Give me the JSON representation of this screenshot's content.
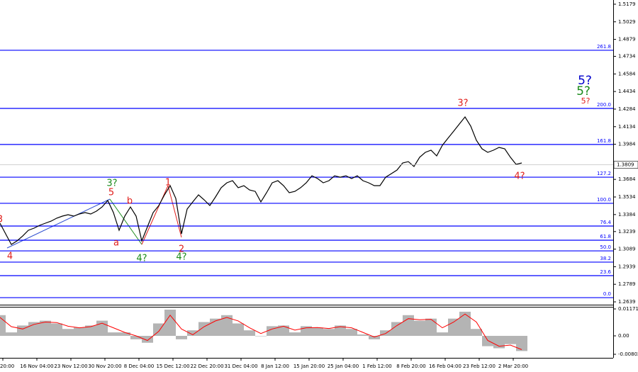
{
  "chart_data": [
    {
      "type": "line",
      "x_labels": [
        "20:00",
        "16 Nov 04:00",
        "23 Nov 12:00",
        "30 Nov 20:00",
        "8 Dec 04:00",
        "15 Dec 12:00",
        "22 Dec 20:00",
        "31 Dec 04:00",
        "8 Jan 12:00",
        "15 Jan 20:00",
        "25 Jan 04:00",
        "1 Feb 12:00",
        "8 Feb 20:00",
        "16 Feb 04:00",
        "23 Feb 12:00",
        "2 Mar 20:00"
      ],
      "series": [
        {
          "color": "#000000",
          "values": [
            1.331,
            1.3219,
            1.3129,
            1.3159,
            1.3201,
            1.325,
            1.3268,
            1.3292,
            1.331,
            1.3328,
            1.3353,
            1.3371,
            1.3383,
            1.3371,
            1.3389,
            1.3401,
            1.3389,
            1.3413,
            1.3449,
            1.3504,
            1.3401,
            1.325,
            1.3371,
            1.3449,
            1.3371,
            1.3159,
            1.328,
            1.3401,
            1.3461,
            1.3552,
            1.3631,
            1.3522,
            1.3219,
            1.3431,
            1.3492,
            1.3552,
            1.351,
            1.3461,
            1.3534,
            1.3613,
            1.3655,
            1.3673,
            1.3613,
            1.3631,
            1.3594,
            1.3582,
            1.3492,
            1.357,
            1.3655,
            1.3673,
            1.3631,
            1.357,
            1.3582,
            1.3613,
            1.3655,
            1.3715,
            1.3691,
            1.3655,
            1.3673,
            1.3715,
            1.3703,
            1.3715,
            1.3691,
            1.3715,
            1.3673,
            1.3655,
            1.3631,
            1.3631,
            1.3703,
            1.3733,
            1.3764,
            1.3824,
            1.3836,
            1.3794,
            1.3873,
            1.3915,
            1.3933,
            1.3885,
            1.3975,
            1.4036,
            1.4096,
            1.4157,
            1.4217,
            1.4139,
            1.4018,
            1.3945,
            1.3915,
            1.3933,
            1.3957,
            1.3945,
            1.3873,
            1.3812,
            1.3824
          ]
        }
      ],
      "ylim": [
        1.2627,
        1.5215
      ],
      "yticks": [
        1.5179,
        1.5029,
        1.4879,
        1.4734,
        1.4584,
        1.4434,
        1.4284,
        1.4134,
        1.3984,
        1.3684,
        1.3534,
        1.3384,
        1.3239,
        1.3089,
        1.2939,
        1.2789,
        1.2639
      ],
      "last_price": 1.3809,
      "levels": [
        {
          "value": 1.4786,
          "label": "261.8"
        },
        {
          "value": 1.429,
          "label": "200.0"
        },
        {
          "value": 1.3982,
          "label": "161.8"
        },
        {
          "value": 1.3703,
          "label": "127.2"
        },
        {
          "value": 1.348,
          "label": "100.0"
        },
        {
          "value": 1.3286,
          "label": "76.4"
        },
        {
          "value": 1.3165,
          "label": "61.8"
        },
        {
          "value": 1.3074,
          "label": "50.0"
        },
        {
          "value": 1.2978,
          "label": "38.2"
        },
        {
          "value": 1.2863,
          "label": "23.6"
        },
        {
          "value": 1.2675,
          "label": "0.0"
        }
      ],
      "level_color": "#0000ff",
      "wave_labels": [
        {
          "text": "3",
          "color": "#e0201c"
        },
        {
          "text": "4",
          "color": "#e0201c"
        },
        {
          "text": "3?",
          "color": "#1a8a1a"
        },
        {
          "text": "5",
          "color": "#e0201c"
        },
        {
          "text": "b",
          "color": "#e0201c"
        },
        {
          "text": "a",
          "color": "#e0201c"
        },
        {
          "text": "4?",
          "color": "#1a8a1a"
        },
        {
          "text": "1",
          "color": "#e0201c"
        },
        {
          "text": "2",
          "color": "#e0201c"
        },
        {
          "text": "4?",
          "color": "#1a8a1a"
        },
        {
          "text": "3?",
          "color": "#e0201c"
        },
        {
          "text": "4?",
          "color": "#e0201c"
        },
        {
          "text": "5?",
          "color": "#0000cc"
        },
        {
          "text": "5?",
          "color": "#1a8a1a"
        },
        {
          "text": "5?",
          "color": "#e0201c"
        }
      ]
    },
    {
      "type": "histogram",
      "series": [
        {
          "color": "#b4b4b4",
          "values": [
            0.009,
            0.0015,
            0.0045,
            0.006,
            0.0066,
            0.0054,
            0.003,
            0.0036,
            0.0045,
            0.0066,
            0.0015,
            0.0015,
            -0.0015,
            -0.003,
            0.0054,
            0.0114,
            -0.0015,
            0.0024,
            0.006,
            0.0075,
            0.009,
            0.0054,
            0.0024,
            0.0,
            0.0042,
            0.0045,
            0.0015,
            0.0042,
            0.0036,
            0.003,
            0.0045,
            0.003,
            0.0006,
            -0.0015,
            0.0024,
            0.006,
            0.009,
            0.0066,
            0.0075,
            0.0015,
            0.0075,
            0.0105,
            0.003,
            -0.0045,
            -0.0054,
            -0.0036,
            -0.0066
          ]
        },
        {
          "color": "#ff0000",
          "values": [
            0.008,
            0.004,
            0.003,
            0.005,
            0.006,
            0.0058,
            0.0042,
            0.0035,
            0.004,
            0.0055,
            0.0035,
            0.0015,
            0.0,
            -0.002,
            0.002,
            0.009,
            0.003,
            0.0005,
            0.004,
            0.0065,
            0.008,
            0.0065,
            0.0035,
            0.001,
            0.003,
            0.0042,
            0.0025,
            0.0035,
            0.0036,
            0.0032,
            0.004,
            0.0035,
            0.0015,
            -0.0005,
            0.001,
            0.0045,
            0.0075,
            0.007,
            0.0072,
            0.0035,
            0.006,
            0.0095,
            0.006,
            -0.002,
            -0.0045,
            -0.004,
            -0.006
          ]
        }
      ],
      "ylim": [
        -0.00802,
        0.01171
      ],
      "yticks": [
        0.01171,
        {
          "value": 0,
          "label": "0.00"
        },
        -0.00802
      ]
    }
  ]
}
